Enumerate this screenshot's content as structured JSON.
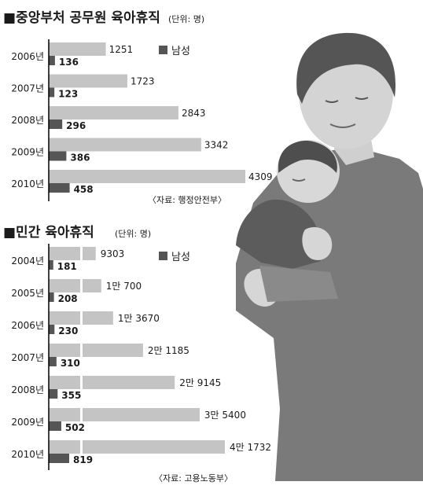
{
  "colors": {
    "total_bar": "#c4c4c4",
    "male_bar": "#555555",
    "axis": "#000000",
    "text": "#1a1a1a",
    "figure_dark": "#6e6e6e",
    "figure_light": "#d2d2d2"
  },
  "chart_data": [
    {
      "type": "bar",
      "orientation": "horizontal",
      "title": "■중앙부처 공무원 육아휴직",
      "unit_note": "(단위: 명)",
      "legend": "남성",
      "legend_position": "top-right",
      "source": "〈자료: 행정안전부〉",
      "categories": [
        "2006년",
        "2007년",
        "2008년",
        "2009년",
        "2010년"
      ],
      "series": [
        {
          "values": [
            1251,
            1723,
            2843,
            3342,
            4309
          ],
          "labels": [
            "1251",
            "1723",
            "2843",
            "3342",
            "4309"
          ]
        },
        {
          "name": "남성",
          "values": [
            136,
            123,
            296,
            386,
            458
          ],
          "labels": [
            "136",
            "123",
            "296",
            "386",
            "458"
          ]
        }
      ]
    },
    {
      "type": "bar",
      "orientation": "horizontal",
      "title": "■민간 육아휴직",
      "unit_note": "(단위: 명)",
      "legend": "남성",
      "legend_position": "top-right",
      "source": "〈자료: 고용노동부〉",
      "axis_break": true,
      "categories": [
        "2004년",
        "2005년",
        "2006년",
        "2007년",
        "2008년",
        "2009년",
        "2010년"
      ],
      "series": [
        {
          "values": [
            9303,
            10700,
            13670,
            21185,
            29145,
            35400,
            41732
          ],
          "labels": [
            "9303",
            "1만 700",
            "1만 3670",
            "2만 1185",
            "2만 9145",
            "3만 5400",
            "4만 1732"
          ]
        },
        {
          "name": "남성",
          "values": [
            181,
            208,
            230,
            310,
            355,
            502,
            819
          ],
          "labels": [
            "181",
            "208",
            "230",
            "310",
            "355",
            "502",
            "819"
          ]
        }
      ]
    }
  ]
}
